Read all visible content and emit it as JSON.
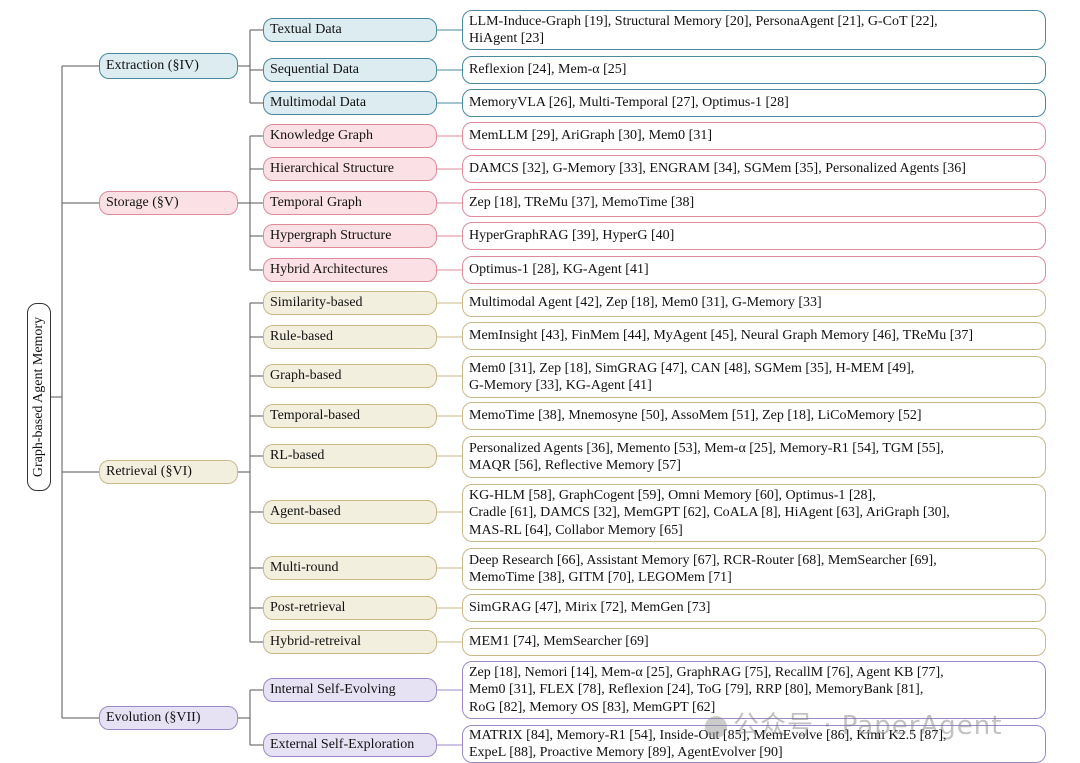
{
  "root": "Graph-based Agent Memory",
  "categories": [
    {
      "label": "Extraction (§IV)",
      "subs": [
        {
          "label": "Textual Data",
          "leaf": "LLM-Induce-Graph [19], Structural Memory [20], PersonaAgent [21], G-CoT [22],\nHiAgent [23]"
        },
        {
          "label": "Sequential Data",
          "leaf": "Reflexion [24], Mem-α [25]"
        },
        {
          "label": "Multimodal Data",
          "leaf": "MemoryVLA [26], Multi-Temporal [27], Optimus-1 [28]"
        }
      ]
    },
    {
      "label": "Storage (§V)",
      "subs": [
        {
          "label": "Knowledge Graph",
          "leaf": "MemLLM [29], AriGraph [30], Mem0 [31]"
        },
        {
          "label": "Hierarchical Structure",
          "leaf": "DAMCS [32], G-Memory [33], ENGRAM [34], SGMem [35], Personalized Agents [36]"
        },
        {
          "label": "Temporal Graph",
          "leaf": "Zep [18], TReMu [37], MemoTime [38]"
        },
        {
          "label": "Hypergraph Structure",
          "leaf": "HyperGraphRAG [39], HyperG [40]"
        },
        {
          "label": "Hybrid Architectures",
          "leaf": "Optimus-1 [28], KG-Agent [41]"
        }
      ]
    },
    {
      "label": "Retrieval (§VI)",
      "subs": [
        {
          "label": "Similarity-based",
          "leaf": "Multimodal Agent [42], Zep [18], Mem0 [31], G-Memory [33]"
        },
        {
          "label": "Rule-based",
          "leaf": "MemInsight [43], FinMem [44], MyAgent [45], Neural Graph Memory [46], TReMu [37]"
        },
        {
          "label": "Graph-based",
          "leaf": "Mem0 [31], Zep [18], SimGRAG [47], CAN [48], SGMem [35], H-MEM [49],\nG-Memory [33], KG-Agent [41]"
        },
        {
          "label": "Temporal-based",
          "leaf": "MemoTime [38], Mnemosyne [50], AssoMem [51], Zep [18], LiCoMemory [52]"
        },
        {
          "label": "RL-based",
          "leaf": "Personalized Agents [36], Memento [53], Mem-α [25], Memory-R1 [54], TGM [55],\nMAQR [56], Reflective Memory [57]"
        },
        {
          "label": "Agent-based",
          "leaf": "KG-HLM [58], GraphCogent [59], Omni Memory [60], Optimus-1 [28],\nCradle [61], DAMCS [32], MemGPT [62], CoALA [8], HiAgent [63], AriGraph [30],\nMAS-RL [64], Collabor Memory [65]"
        },
        {
          "label": "Multi-round",
          "leaf": "Deep Research [66], Assistant Memory [67], RCR-Router [68], MemSearcher [69],\nMemoTime [38], GITM [70], LEGOMem [71]"
        },
        {
          "label": "Post-retrieval",
          "leaf": "SimGRAG [47], Mirix [72], MemGen [73]"
        },
        {
          "label": "Hybrid-retreival",
          "leaf": "MEM1 [74], MemSearcher [69]"
        }
      ]
    },
    {
      "label": "Evolution (§VII)",
      "subs": [
        {
          "label": "Internal Self-Evolving",
          "leaf": "Zep [18], Nemori [14], Mem-α [25], GraphRAG [75], RecallM [76], Agent KB [77],\nMem0 [31], FLEX [78], Reflexion [24], ToG [79], RRP [80], MemoryBank [81],\nRoG [82], Memory OS [83], MemGPT [62]"
        },
        {
          "label": "External Self-Exploration",
          "leaf": "MATRIX [84], Memory-R1 [54], Inside-Out [85], MemEvolve [86], Kimi K2.5 [87],\nExpeL [88], Proactive Memory [89], AgentEvolver [90]"
        }
      ]
    }
  ],
  "watermark": "公众号 · PaperAgent",
  "colors": {
    "extraction": "#4a8aa0",
    "storage": "#e08a9a",
    "retrieval": "#c9b98a",
    "evolution": "#9c8ac8"
  }
}
